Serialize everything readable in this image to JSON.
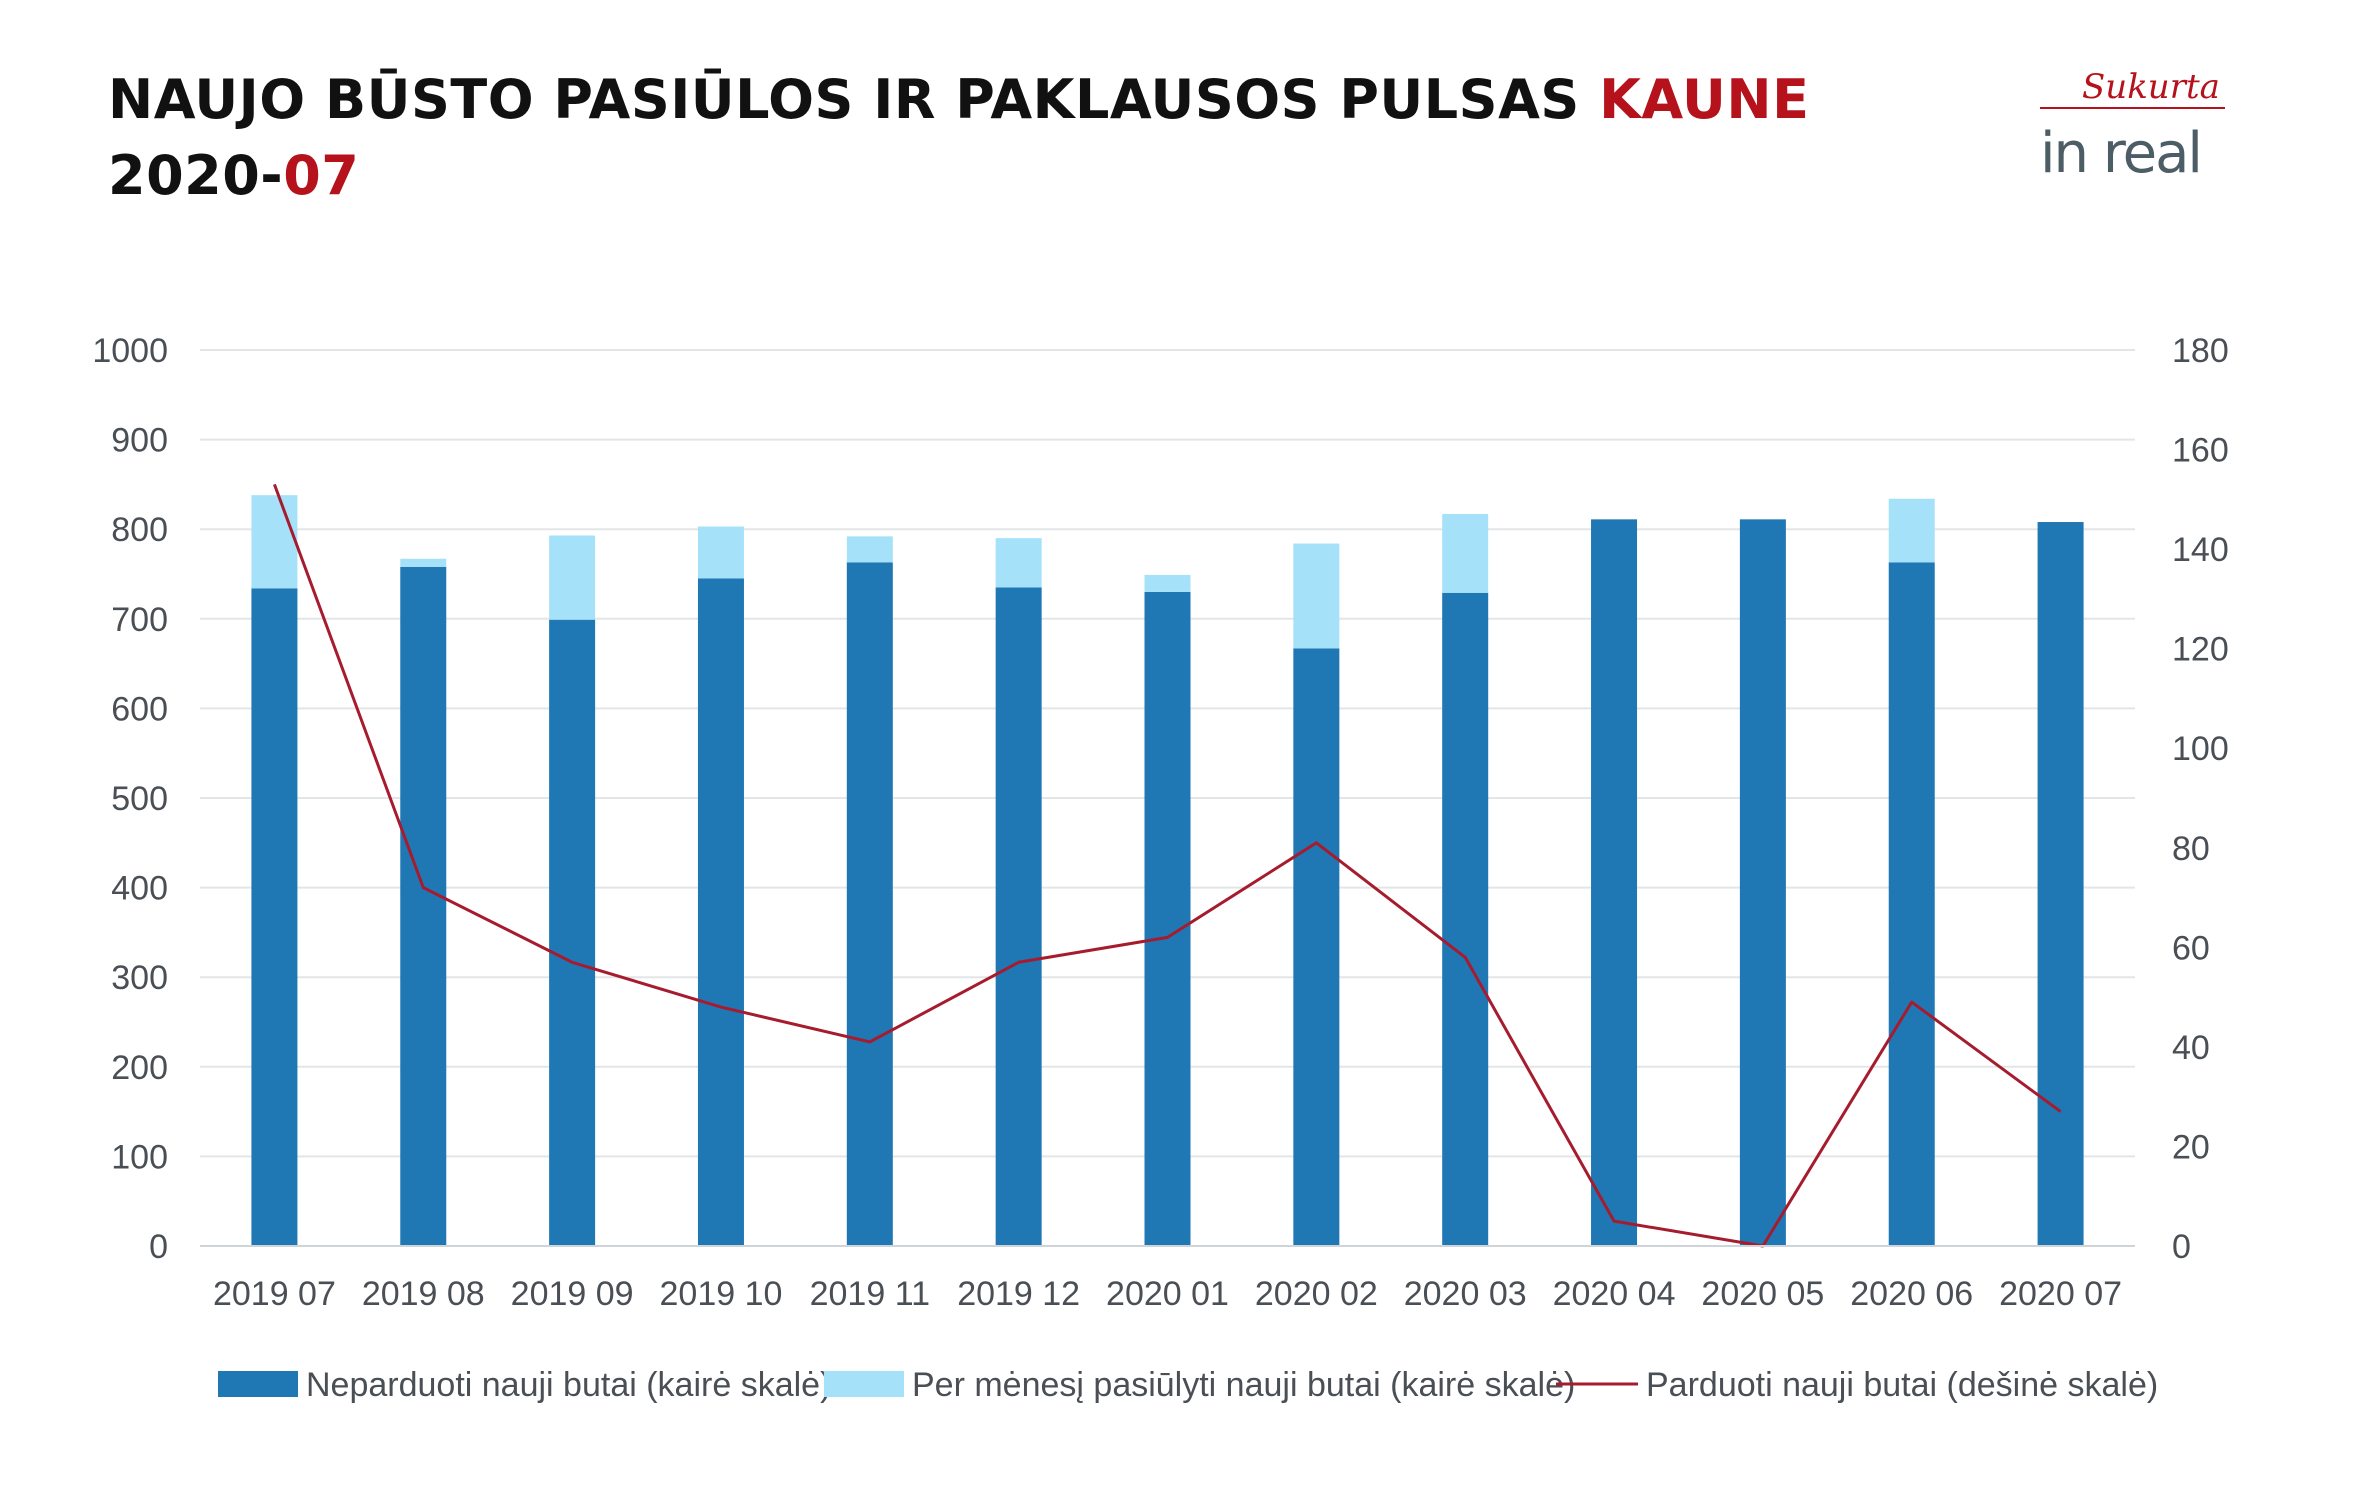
{
  "header": {
    "title_line1": "NAUJO BŪSTO PASIŪLOS IR PAKLAUSOS PULSAS ",
    "title_accent": "KAUNE",
    "title_line2": "2020-",
    "title_line2_accent": "07"
  },
  "logo": {
    "script_text": "Sukurta",
    "brand_text": "in real"
  },
  "colors": {
    "unsold": "#1f77b4",
    "offered": "#a6e1fa",
    "sold": "#a61c2e",
    "accent": "#b5121b",
    "grid": "#e3e6e8",
    "tick": "#4a4f55"
  },
  "chart_data": {
    "type": "bar",
    "stacked": true,
    "categories": [
      "2019 07",
      "2019 08",
      "2019 09",
      "2019 10",
      "2019 11",
      "2019 12",
      "2020 01",
      "2020 02",
      "2020 03",
      "2020 04",
      "2020 05",
      "2020 06",
      "2020 07"
    ],
    "series": [
      {
        "name": "Neparduoti nauji butai (kairė skalė)",
        "type": "bar",
        "axis": "left",
        "values": [
          734,
          758,
          699,
          745,
          763,
          735,
          730,
          667,
          729,
          811,
          811,
          763,
          808
        ]
      },
      {
        "name": "Per mėnesį pasiūlyti nauji butai (kairė skalė)",
        "type": "bar",
        "axis": "left",
        "values": [
          104,
          9,
          94,
          58,
          29,
          55,
          19,
          117,
          88,
          0,
          0,
          71,
          0
        ]
      },
      {
        "name": "Parduoti nauji butai (dešinė skalė)",
        "type": "line",
        "axis": "right",
        "values": [
          153,
          72,
          57,
          48,
          41,
          57,
          62,
          81,
          58,
          5,
          0,
          49,
          27
        ]
      }
    ],
    "left_axis": {
      "min": 0,
      "max": 1000,
      "ticks": [
        "0",
        "100",
        "200",
        "300",
        "400",
        "500",
        "600",
        "700",
        "800",
        "900",
        "1000"
      ]
    },
    "right_axis": {
      "min": 0,
      "max": 180,
      "ticks": [
        "0",
        "20",
        "40",
        "60",
        "80",
        "100",
        "120",
        "140",
        "160",
        "180"
      ]
    },
    "grid": true,
    "legend_position": "bottom"
  }
}
